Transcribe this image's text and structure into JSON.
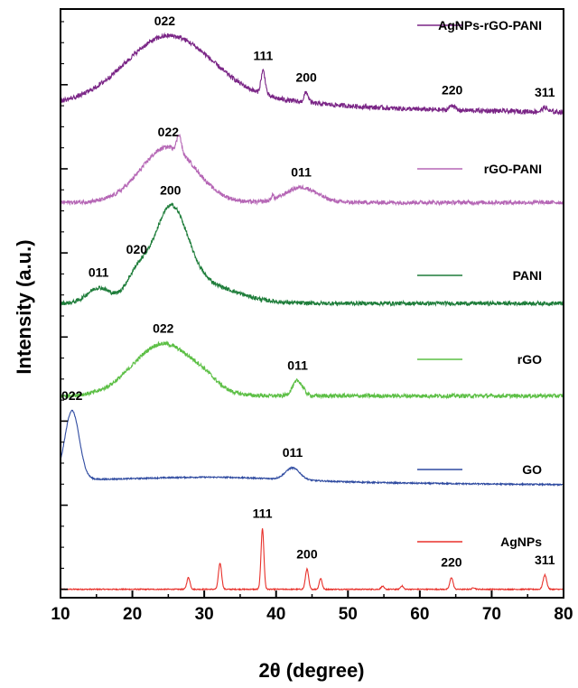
{
  "chart_data": {
    "type": "line",
    "title": "",
    "xlabel": "2θ (degree)",
    "ylabel": "Intensity (a.u.)",
    "xlim": [
      10,
      80
    ],
    "x_ticks": [
      10,
      20,
      30,
      40,
      50,
      60,
      70,
      80
    ],
    "y_tick_labels": "none",
    "grid": false,
    "legend_placement": "right of each trace",
    "series": [
      {
        "name": "AgNPs",
        "color": "#e8302a",
        "baseline": 0.0,
        "noise": 0.003,
        "features": [
          {
            "center": 27.8,
            "width": 0.22,
            "height": 0.07
          },
          {
            "center": 32.2,
            "width": 0.22,
            "height": 0.155
          },
          {
            "center": 38.1,
            "width": 0.2,
            "height": 0.36
          },
          {
            "center": 44.3,
            "width": 0.22,
            "height": 0.12
          },
          {
            "center": 46.2,
            "width": 0.2,
            "height": 0.065
          },
          {
            "center": 54.8,
            "width": 0.2,
            "height": 0.018
          },
          {
            "center": 57.5,
            "width": 0.2,
            "height": 0.02
          },
          {
            "center": 64.4,
            "width": 0.22,
            "height": 0.07
          },
          {
            "center": 67.5,
            "width": 0.2,
            "height": 0.01
          },
          {
            "center": 77.4,
            "width": 0.25,
            "height": 0.085
          }
        ],
        "peak_labels": [
          {
            "text": "111",
            "x": 38.1
          },
          {
            "text": "200",
            "x": 44.3
          },
          {
            "text": "220",
            "x": 64.4
          },
          {
            "text": "311",
            "x": 77.4
          }
        ]
      },
      {
        "name": "GO",
        "color": "#2e4aa0",
        "baseline": 0.65,
        "noise": 0.004,
        "features": [
          {
            "center": 11.6,
            "width": 1.0,
            "height": 0.41
          },
          {
            "center": 32.0,
            "width": 10.0,
            "height": 0.025
          },
          {
            "center": 42.3,
            "width": 1.0,
            "height": 0.07
          }
        ],
        "slope": -0.0004,
        "peak_labels": [
          {
            "text": "022",
            "x": 11.6
          },
          {
            "text": "011",
            "x": 42.3
          }
        ]
      },
      {
        "name": "rGO",
        "color": "#5cbf45",
        "baseline": 1.15,
        "noise": 0.012,
        "features": [
          {
            "center": 24.3,
            "width": 4.2,
            "height": 0.31
          },
          {
            "center": 30.0,
            "width": 1.8,
            "height": 0.04
          },
          {
            "center": 43.0,
            "width": 0.7,
            "height": 0.09
          }
        ],
        "peak_labels": [
          {
            "text": "022",
            "x": 24.3
          },
          {
            "text": "011",
            "x": 43.0
          }
        ]
      },
      {
        "name": "PANI",
        "color": "#1e7d3a",
        "baseline": 1.7,
        "noise": 0.012,
        "features": [
          {
            "center": 15.3,
            "width": 1.6,
            "height": 0.09
          },
          {
            "center": 20.6,
            "width": 1.5,
            "height": 0.14
          },
          {
            "center": 25.3,
            "width": 2.3,
            "height": 0.49
          },
          {
            "center": 29.0,
            "width": 5.0,
            "height": 0.12
          }
        ],
        "peak_labels": [
          {
            "text": "011",
            "x": 15.3
          },
          {
            "text": "020",
            "x": 20.6
          },
          {
            "text": "200",
            "x": 25.3
          }
        ]
      },
      {
        "name": "rGO-PANI",
        "color": "#b566b5",
        "baseline": 2.3,
        "noise": 0.012,
        "features": [
          {
            "center": 25.0,
            "width": 3.8,
            "height": 0.33
          },
          {
            "center": 26.5,
            "width": 0.3,
            "height": 0.1
          },
          {
            "center": 43.5,
            "width": 2.2,
            "height": 0.09
          },
          {
            "center": 39.5,
            "width": 0.15,
            "height": 0.03
          }
        ],
        "peak_labels": [
          {
            "text": "022",
            "x": 25.0
          },
          {
            "text": "011",
            "x": 43.5
          }
        ]
      },
      {
        "name": "AgNPs-rGO-PANI",
        "color": "#7a2586",
        "baseline": 2.88,
        "noise": 0.014,
        "features": [
          {
            "center": 25.0,
            "width": 6.0,
            "height": 0.38
          },
          {
            "center": 33.0,
            "width": 12.0,
            "height": 0.05
          },
          {
            "center": 38.2,
            "width": 0.3,
            "height": 0.14
          },
          {
            "center": 44.2,
            "width": 0.3,
            "height": 0.06
          },
          {
            "center": 64.5,
            "width": 0.35,
            "height": 0.03
          },
          {
            "center": 77.4,
            "width": 0.35,
            "height": 0.025
          }
        ],
        "slope": -0.0006,
        "peak_labels": [
          {
            "text": "022",
            "x": 24.5
          },
          {
            "text": "111",
            "x": 38.2
          },
          {
            "text": "200",
            "x": 44.2
          },
          {
            "text": "220",
            "x": 64.5
          },
          {
            "text": "311",
            "x": 77.4
          }
        ]
      }
    ]
  }
}
